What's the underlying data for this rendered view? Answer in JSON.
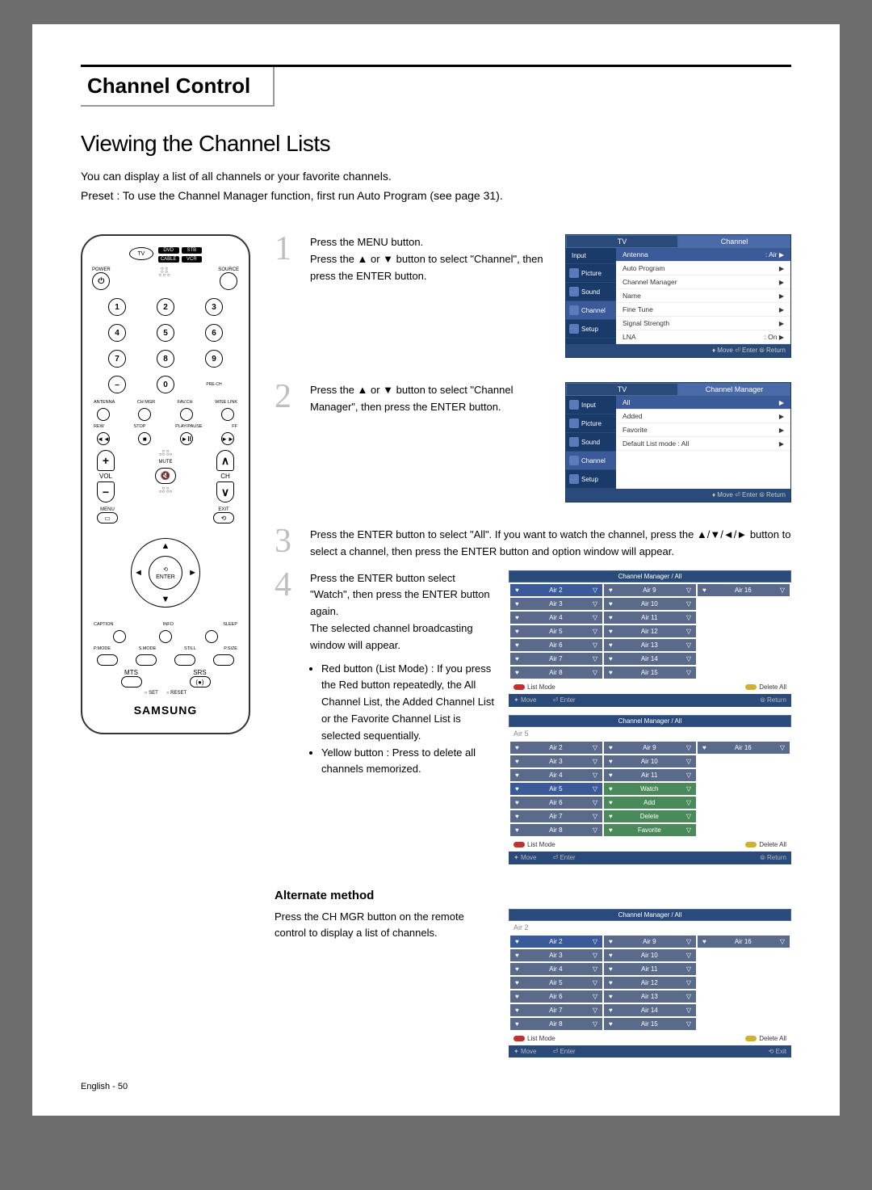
{
  "page": {
    "chapter_title": "Channel Control",
    "section_title": "Viewing the Channel Lists",
    "intro1": "You can display a list of all channels or your favorite channels.",
    "intro2": "Preset : To use the Channel Manager function, first run Auto Program (see page 31).",
    "footer": "English - 50"
  },
  "remote": {
    "tv": "TV",
    "top_btns": [
      "DVD",
      "STB",
      "CABLE",
      "VCR"
    ],
    "power": "POWER",
    "source": "SOURCE",
    "prech": "PRE-CH",
    "row_lbls": [
      "ANTENNA",
      "CH MGR",
      "FAV.CH",
      "WISE LINK"
    ],
    "row2_lbls": [
      "REW",
      "STOP",
      "PLAY/PAUSE",
      "FF"
    ],
    "vol": "VOL",
    "ch": "CH",
    "mute": "MUTE",
    "menu": "MENU",
    "exit": "EXIT",
    "enter": "ENTER",
    "caption": "CAPTION",
    "info": "INFO",
    "sleep": "SLEEP",
    "bottom_lbls": [
      "P.MODE",
      "S.MODE",
      "STILL",
      "P.SIZE"
    ],
    "mts": "MTS",
    "srs": "SRS",
    "set": "○ SET",
    "reset": "○ RESET",
    "brand": "SAMSUNG"
  },
  "steps": {
    "s1": "Press the MENU button.\nPress the ▲ or ▼ button to select \"Channel\", then press the ENTER button.",
    "s2": "Press the ▲ or ▼ button to select \"Channel Manager\", then press the ENTER button.",
    "s3": "Press the ENTER button to select \"All\". If you want to watch the channel, press the ▲/▼/◄/► button to select a channel, then press the ENTER button and option window will appear.",
    "s4a": "Press the ENTER button select \"Watch\", then press the ENTER button again.\nThe selected channel broadcasting window will appear.",
    "s4b1": "Red button (List Mode) : If you press the Red button repeatedly, the All Channel List, the Added Channel List or the Favorite Channel List is selected sequentially.",
    "s4b2": "Yellow button : Press to delete all channels memorized.",
    "alt_heading": "Alternate method",
    "alt_text": "Press the CH MGR button on the remote control to display a list of channels."
  },
  "osd1": {
    "title_left": "TV",
    "title_right": "Channel",
    "side": [
      "Input",
      "Picture",
      "Sound",
      "Channel",
      "Setup"
    ],
    "rows": [
      [
        "Antenna",
        ": Air"
      ],
      [
        "Auto Program",
        ""
      ],
      [
        "Channel Manager",
        ""
      ],
      [
        "Name",
        ""
      ],
      [
        "Fine Tune",
        ""
      ],
      [
        "Signal Strength",
        ""
      ],
      [
        "LNA",
        ": On"
      ]
    ],
    "foot": "♦ Move    ⏎ Enter    ⦾ Return"
  },
  "osd2": {
    "title_left": "TV",
    "title_right": "Channel Manager",
    "side": [
      "Input",
      "Picture",
      "Sound",
      "Channel",
      "Setup"
    ],
    "rows": [
      [
        "All",
        ""
      ],
      [
        "Added",
        ""
      ],
      [
        "Favorite",
        ""
      ],
      [
        "Default List mode  : All",
        ""
      ]
    ],
    "foot": "♦ Move    ⏎ Enter    ⦾ Return"
  },
  "chgrid": {
    "title": "Channel Manager / All",
    "list_mode": "List Mode",
    "delete_all": "Delete All",
    "move": "Move",
    "enter": "Enter",
    "return": "Return",
    "exit": "Exit",
    "g1_sel": "",
    "g1_cells": [
      "Air 2",
      "Air 9",
      "Air 16",
      "Air 3",
      "Air 10",
      "",
      "Air 4",
      "Air 11",
      "",
      "Air 5",
      "Air 12",
      "",
      "Air 6",
      "Air 13",
      "",
      "Air 7",
      "Air 14",
      "",
      "Air 8",
      "Air 15",
      ""
    ],
    "g2_sel": "Air 5",
    "g2_cells": [
      "Air 2",
      "Air 9",
      "Air 16",
      "Air 3",
      "Air 10",
      "",
      "Air 4",
      "Air 11",
      "",
      "Air 5",
      "Watch",
      "",
      "Air 6",
      "Add",
      "",
      "Air 7",
      "Delete",
      "",
      "Air 8",
      "Favorite",
      ""
    ],
    "g3_sel": "Air 2",
    "g3_cells": [
      "Air 2",
      "Air 9",
      "Air 16",
      "Air 3",
      "Air 10",
      "",
      "Air 4",
      "Air 11",
      "",
      "Air 5",
      "Air 12",
      "",
      "Air 6",
      "Air 13",
      "",
      "Air 7",
      "Air 14",
      "",
      "Air 8",
      "Air 15",
      ""
    ]
  },
  "colors": {
    "step_num": "#bfbfbf",
    "osd_dark": "#1a3a6a",
    "osd_mid": "#2a4a7a",
    "osd_sel": "#3a5a9a"
  }
}
